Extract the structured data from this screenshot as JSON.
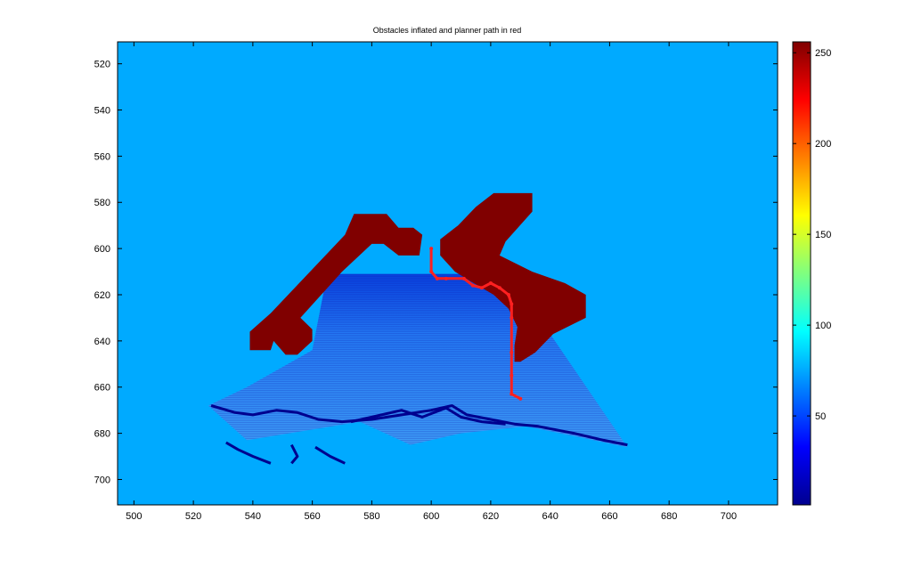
{
  "chart_data": {
    "type": "heatmap",
    "title": "Obstacles inflated and planner path in red",
    "xlabel": "",
    "ylabel": "",
    "xlim": [
      494.5,
      716.5
    ],
    "ylim": [
      510.5,
      711
    ],
    "y_reversed": true,
    "xticks": [
      500,
      520,
      540,
      560,
      580,
      600,
      620,
      640,
      660,
      680,
      700
    ],
    "yticks": [
      520,
      540,
      560,
      580,
      600,
      620,
      640,
      660,
      680,
      700
    ],
    "background_value": 60,
    "colormap": "jet",
    "colorbar": {
      "range": [
        1,
        256
      ],
      "ticks": [
        50,
        100,
        150,
        200,
        250
      ]
    },
    "obstacles": {
      "value": 255,
      "polygons": [
        [
          [
            539,
            644
          ],
          [
            539,
            636
          ],
          [
            546,
            628
          ],
          [
            571,
            594
          ],
          [
            574,
            585
          ],
          [
            585,
            585
          ],
          [
            589,
            591
          ],
          [
            594,
            591
          ],
          [
            597,
            594
          ],
          [
            596,
            603
          ],
          [
            589,
            603
          ],
          [
            584,
            598
          ],
          [
            580,
            598
          ],
          [
            570,
            610
          ],
          [
            556,
            630
          ],
          [
            560,
            635
          ],
          [
            560,
            640
          ],
          [
            555,
            646
          ],
          [
            551,
            646
          ],
          [
            547,
            640
          ],
          [
            546,
            644
          ]
        ],
        [
          [
            628,
            649
          ],
          [
            628,
            642
          ],
          [
            629,
            634
          ],
          [
            626,
            626
          ],
          [
            621,
            620
          ],
          [
            613,
            614
          ],
          [
            608,
            610
          ],
          [
            603,
            603
          ],
          [
            603,
            596
          ],
          [
            609,
            590
          ],
          [
            615,
            582
          ],
          [
            621,
            576
          ],
          [
            634,
            576
          ],
          [
            634,
            584
          ],
          [
            625,
            597
          ],
          [
            623,
            603
          ],
          [
            634,
            610
          ],
          [
            645,
            615
          ],
          [
            652,
            620
          ],
          [
            652,
            630
          ],
          [
            641,
            637
          ],
          [
            635,
            645
          ],
          [
            630,
            649
          ]
        ]
      ]
    },
    "path": {
      "color": "#ff2020",
      "points": [
        [
          600,
          600
        ],
        [
          600,
          610
        ],
        [
          602,
          613
        ],
        [
          605,
          613
        ],
        [
          611,
          613
        ],
        [
          614,
          616
        ],
        [
          617,
          617
        ],
        [
          620,
          615
        ],
        [
          623,
          617
        ],
        [
          626,
          620
        ],
        [
          627,
          624
        ],
        [
          627,
          630
        ],
        [
          627,
          645
        ],
        [
          627,
          655
        ],
        [
          627,
          663
        ],
        [
          630,
          665
        ]
      ]
    },
    "scan_region": {
      "polygon": [
        [
          565,
          611
        ],
        [
          611,
          611
        ],
        [
          631,
          620
        ],
        [
          666,
          686
        ],
        [
          632,
          677
        ],
        [
          610,
          680
        ],
        [
          593,
          685
        ],
        [
          576,
          675
        ],
        [
          538,
          683
        ],
        [
          525,
          668
        ],
        [
          538,
          660
        ],
        [
          560,
          644
        ]
      ]
    },
    "dark_edges": [
      [
        [
          526,
          668
        ],
        [
          534,
          671
        ],
        [
          540,
          672
        ],
        [
          548,
          670
        ],
        [
          555,
          671
        ],
        [
          562,
          674
        ],
        [
          570,
          675
        ],
        [
          580,
          674
        ],
        [
          590,
          672
        ],
        [
          600,
          670
        ],
        [
          607,
          668
        ],
        [
          612,
          672
        ],
        [
          620,
          674
        ],
        [
          628,
          676
        ],
        [
          636,
          677
        ],
        [
          648,
          680
        ],
        [
          658,
          683
        ],
        [
          666,
          685
        ]
      ],
      [
        [
          573,
          675
        ],
        [
          580,
          673
        ],
        [
          590,
          670
        ],
        [
          597,
          673
        ],
        [
          605,
          669
        ],
        [
          610,
          673
        ],
        [
          617,
          675
        ],
        [
          625,
          676
        ]
      ],
      [
        [
          531,
          684
        ],
        [
          535,
          687
        ],
        [
          540,
          690
        ],
        [
          546,
          693
        ]
      ],
      [
        [
          561,
          686
        ],
        [
          566,
          690
        ],
        [
          571,
          693
        ]
      ],
      [
        [
          553,
          685
        ],
        [
          555,
          690
        ],
        [
          553,
          693
        ]
      ]
    ]
  }
}
